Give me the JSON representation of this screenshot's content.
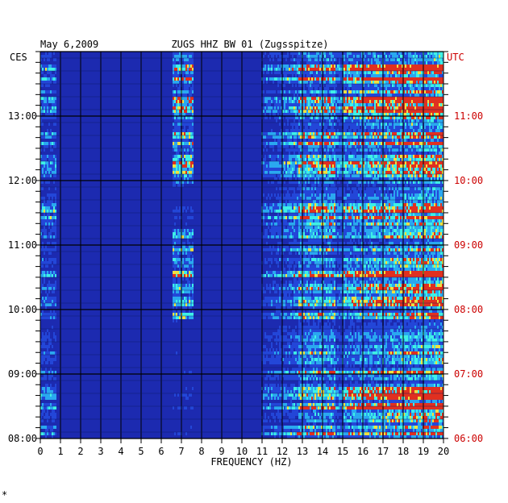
{
  "chart_data": {
    "type": "heatmap",
    "header_date": "May 6,2009",
    "title": "ZUGS HHZ BW 01 (Zugsspitze)",
    "left_axis_name": "CES",
    "right_axis_name": "UTC",
    "xlabel": "FREQUENCY (HZ)",
    "xlim": [
      0,
      20
    ],
    "x_ticks": [
      "0",
      "1",
      "2",
      "3",
      "4",
      "5",
      "6",
      "7",
      "8",
      "9",
      "10",
      "11",
      "12",
      "13",
      "14",
      "15",
      "16",
      "17",
      "18",
      "19",
      "20"
    ],
    "left_time_ticks": [
      "08:00",
      "09:00",
      "10:00",
      "11:00",
      "12:00",
      "13:00"
    ],
    "right_time_ticks": [
      "06:00",
      "07:00",
      "08:00",
      "09:00",
      "10:00",
      "11:00"
    ],
    "right_axis_color": "#cc0000",
    "corner_mark": "*",
    "colors": {
      "background": "#1c2ab0",
      "low": "#2346d8",
      "mid": "#2aa8f0",
      "high": "#3ef0e6",
      "peak": "#f0e040",
      "max": "#e03020"
    },
    "active_bands_hz": [
      [
        6.6,
        7.6
      ],
      [
        12.8,
        14.6
      ],
      [
        15.0,
        20.0
      ]
    ]
  }
}
